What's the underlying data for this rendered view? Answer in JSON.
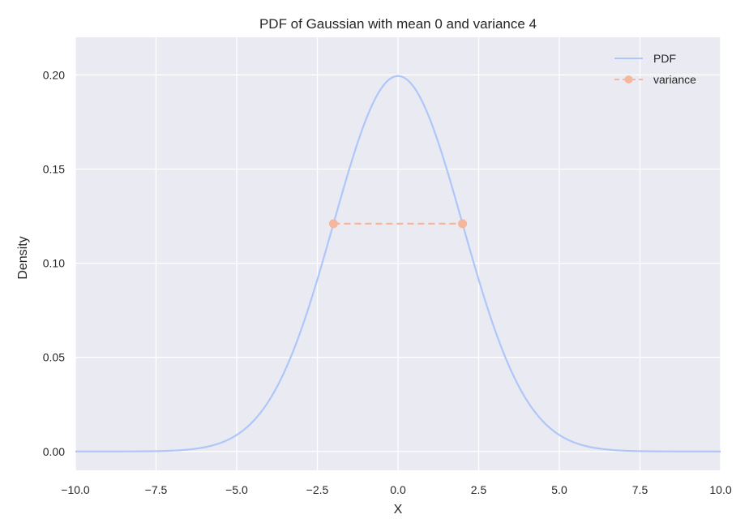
{
  "chart_data": {
    "type": "line",
    "title": "PDF of Gaussian with mean 0 and variance 4",
    "xlabel": "X",
    "ylabel": "Density",
    "xlim": [
      -10.0,
      10.0
    ],
    "ylim": [
      -0.01,
      0.22
    ],
    "x_ticks": [
      -10.0,
      -7.5,
      -5.0,
      -2.5,
      0.0,
      2.5,
      5.0,
      7.5,
      10.0
    ],
    "x_tick_labels": [
      "−10.0",
      "−7.5",
      "−5.0",
      "−2.5",
      "0.0",
      "2.5",
      "5.0",
      "7.5",
      "10.0"
    ],
    "y_ticks": [
      0.0,
      0.05,
      0.1,
      0.15,
      0.2
    ],
    "y_tick_labels": [
      "0.00",
      "0.05",
      "0.10",
      "0.15",
      "0.20"
    ],
    "grid": true,
    "legend": "top-right",
    "background": "#eaeaf2",
    "series": [
      {
        "name": "PDF",
        "style": "solid",
        "color": "#aec7f8",
        "mean": 0,
        "variance": 4,
        "x_range": [
          -10.0,
          10.0
        ]
      },
      {
        "name": "variance",
        "style": "dashed",
        "marker": "circle",
        "color": "#f4b69c",
        "x": [
          -2.0,
          2.0
        ],
        "y": [
          0.121,
          0.121
        ]
      }
    ]
  }
}
